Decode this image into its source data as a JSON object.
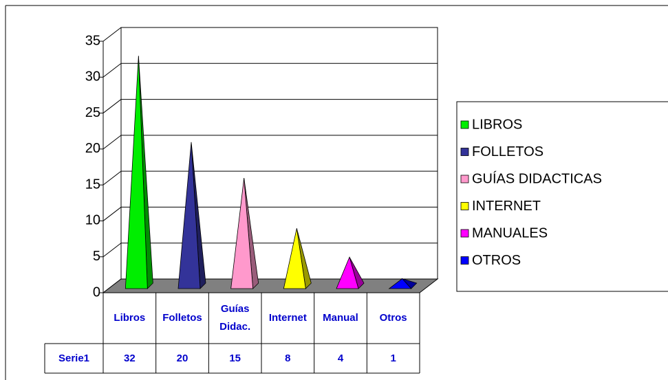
{
  "chart_data": {
    "type": "pyramid",
    "categories": [
      "Libros",
      "Folletos",
      "Guías Didac.",
      "Internet",
      "Manual",
      "Otros"
    ],
    "series": [
      {
        "name": "Serie1",
        "values": [
          32,
          20,
          15,
          8,
          4,
          1
        ]
      }
    ],
    "colors": [
      "#00ee00",
      "#333399",
      "#ff99cc",
      "#ffff00",
      "#ff00ff",
      "#0000ff"
    ],
    "legend": [
      "LIBROS",
      "FOLLETOS",
      "GUÍAS DIDACTICAS",
      "INTERNET",
      "MANUALES",
      "OTROS"
    ],
    "ylim": [
      0,
      35
    ],
    "yticks": [
      0,
      5,
      10,
      15,
      20,
      25,
      30,
      35
    ],
    "grid": true
  }
}
